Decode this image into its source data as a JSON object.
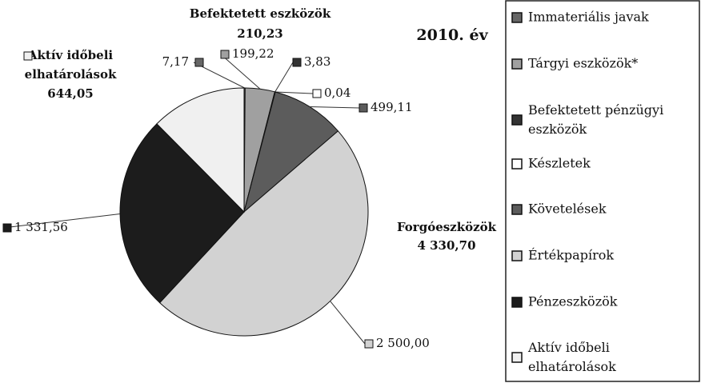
{
  "chart_data": {
    "type": "pie",
    "title": "2010. év",
    "categories": [
      "Immateriális javak",
      "Tárgyi eszközök*",
      "Befektetett pénzügyi eszközök",
      "Készletek",
      "Követelések",
      "Értékpapírok",
      "Pénzeszközök",
      "Aktív időbeli elhatárolások"
    ],
    "values": [
      7.17,
      199.22,
      3.83,
      0.04,
      499.11,
      2500.0,
      1331.56,
      644.05
    ],
    "value_labels": [
      "7,17",
      "199,22",
      "3,83",
      "0,04",
      "499,11",
      "2 500,00",
      "1 331,56",
      "644,05"
    ],
    "colors": [
      "#666666",
      "#a0a0a0",
      "#333333",
      "#ffffff",
      "#5c5c5c",
      "#d2d2d2",
      "#1c1c1c",
      "#f0f0f0"
    ],
    "annotations": [
      {
        "title": "Befektetett eszközök",
        "total": "210,23"
      },
      {
        "title": "Forgóeszközök",
        "total": "4 330,70"
      },
      {
        "title": "Aktív időbeli elhatárolások"
      }
    ],
    "legend": "right"
  }
}
